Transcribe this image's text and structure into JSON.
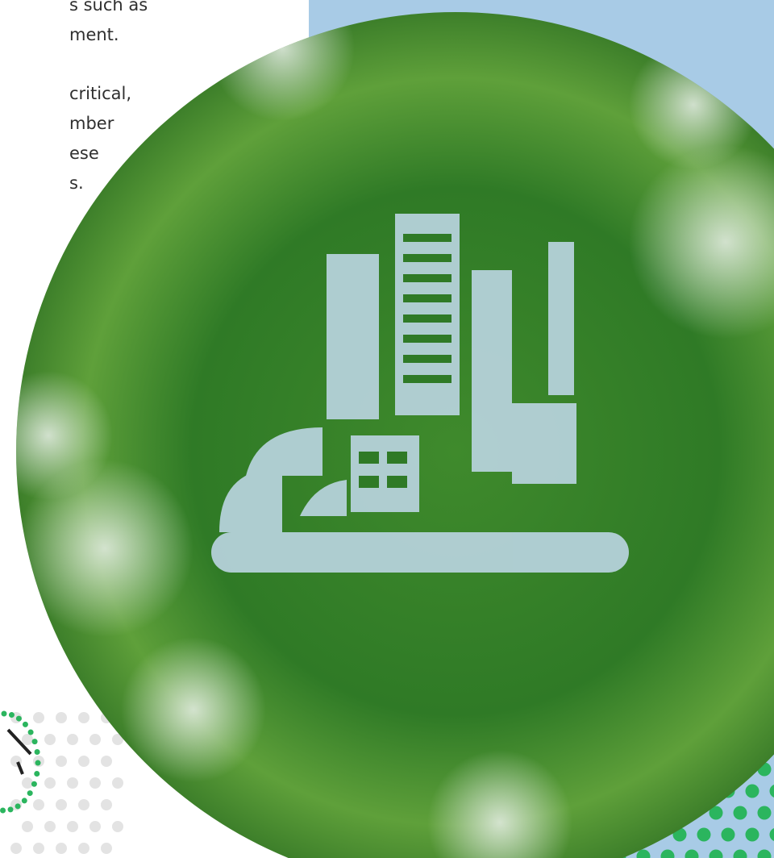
{
  "body_text": {
    "lines": [
      "s such as",
      "ment.",
      "critical,",
      "mber",
      "ese",
      "s."
    ]
  }
}
